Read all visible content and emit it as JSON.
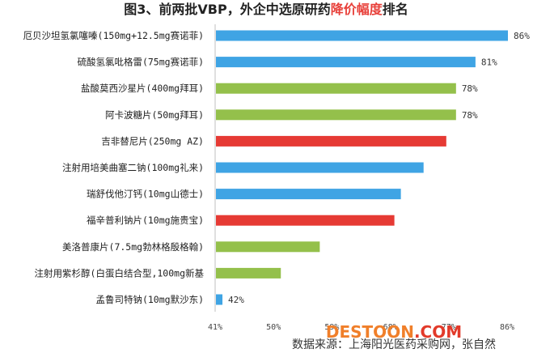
{
  "title": {
    "prefix": "图3、前两批VBP，外企中选原研药",
    "highlight": "降价幅度",
    "suffix": "排名"
  },
  "source": "数据来源：上海阳光医药采购网，张自然",
  "watermark": {
    "part_a": "DESTOON",
    "part_b": ".COM"
  },
  "colors": {
    "blue": "#3fa4e4",
    "green": "#94c04b",
    "red": "#e63a34",
    "highlight": "#e8403a"
  },
  "chart_data": {
    "type": "bar",
    "orientation": "horizontal",
    "title": "图3、前两批VBP，外企中选原研药降价幅度排名",
    "categories": [
      "厄贝沙坦氢氯噻嗪(150mg+12.5mg赛诺菲)",
      "硫酸氢氯吡格雷(75mg赛诺菲)",
      "盐酸莫西沙星片(400mg拜耳)",
      "阿卡波糖片(50mg拜耳)",
      "吉非替尼片(250mg AZ)",
      "注射用培美曲塞二钠(100mg礼来)",
      "瑞舒伐他汀钙(10mg山德士)",
      "福辛普利钠片(10mg施贵宝)",
      "美洛普康片(7.5mg勃林格殷格翰)",
      "注射用紫杉醇(白蛋白结合型,100mg新基",
      "孟鲁司特钠(10mg默沙东)"
    ],
    "values": [
      86,
      81,
      78,
      78,
      76.5,
      73,
      69.5,
      68.5,
      57,
      51,
      42
    ],
    "data_labels": [
      "86%",
      "81%",
      "78%",
      "78%",
      "",
      "",
      "",
      "",
      "",
      "",
      "42%"
    ],
    "bar_colors": [
      "blue",
      "blue",
      "green",
      "green",
      "red",
      "blue",
      "blue",
      "red",
      "green",
      "green",
      "blue"
    ],
    "xlim": [
      41,
      86
    ],
    "x_ticks": [
      "41%",
      "50%",
      "59%",
      "68%",
      "77%",
      "86%"
    ],
    "x_tick_values": [
      41,
      50,
      59,
      68,
      77,
      86
    ],
    "xlabel": "",
    "ylabel": ""
  }
}
